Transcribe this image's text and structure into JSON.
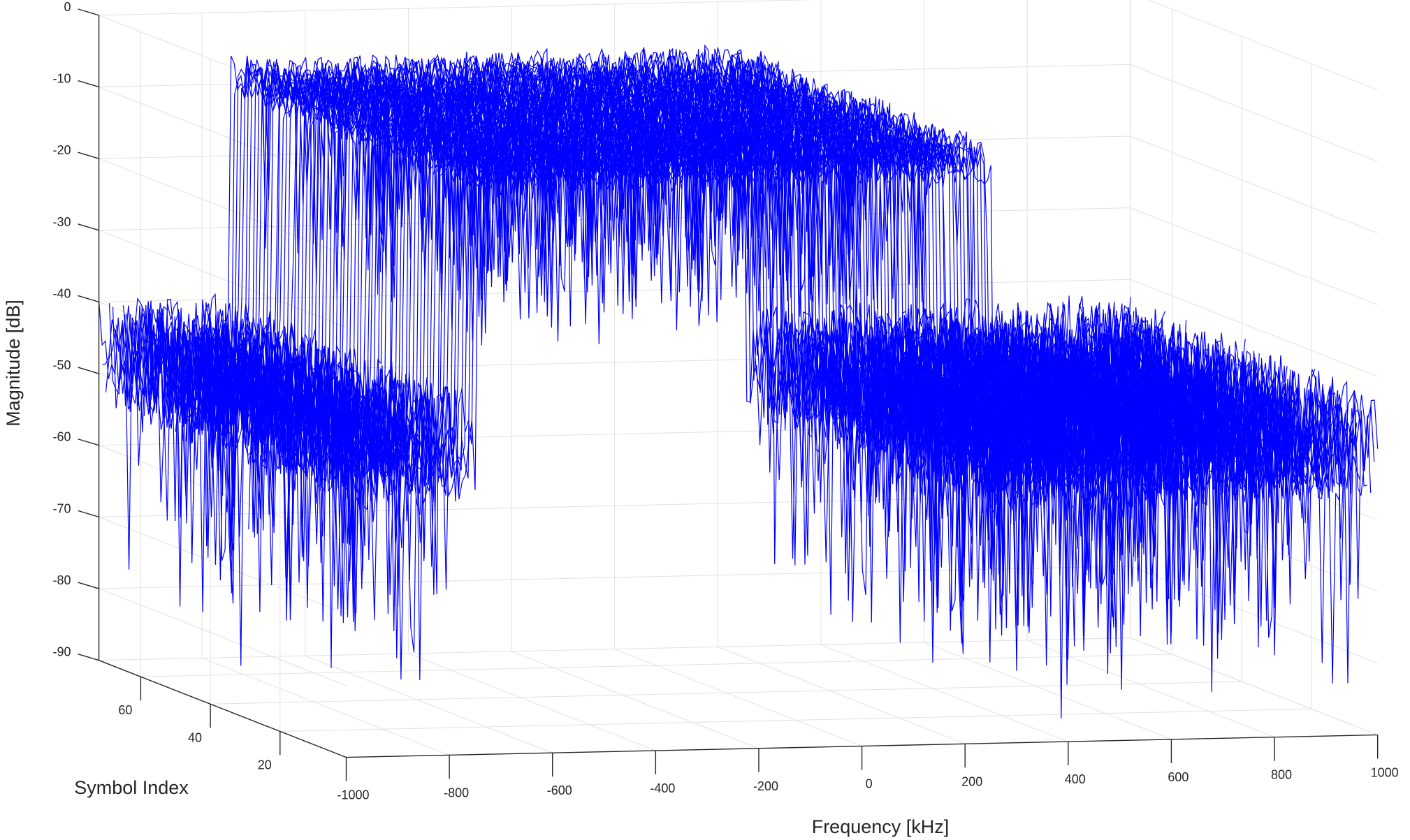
{
  "chart_data": {
    "type": "line",
    "subtype": "3d-waterfall",
    "title": "",
    "xlabel": "Frequency [kHz]",
    "ylabel": "Symbol Index",
    "zlabel": "Magnitude [dB]",
    "xlim": [
      -1000,
      1000
    ],
    "ylim": [
      1,
      72
    ],
    "zlim": [
      -90,
      0
    ],
    "x_ticks": [
      "-1000",
      "-800",
      "-600",
      "-400",
      "-200",
      "0",
      "200",
      "400",
      "600",
      "800",
      "1000"
    ],
    "y_ticks": [
      "20",
      "40",
      "60"
    ],
    "z_ticks": [
      "0",
      "-10",
      "-20",
      "-30",
      "-40",
      "-50",
      "-60",
      "-70",
      "-80",
      "-90"
    ],
    "grid": true,
    "line_color": "#0000ff",
    "series_count": 72,
    "series_description_values": {
      "frequency_segments_khz": [
        {
          "from": -1000,
          "to": -750,
          "level_db": -47,
          "spread_db": 8
        },
        {
          "from": -750,
          "to": 250,
          "level_db": -9,
          "spread_db": 3
        },
        {
          "from": 250,
          "to": 1000,
          "level_db": -50,
          "spread_db": 8
        }
      ]
    }
  }
}
